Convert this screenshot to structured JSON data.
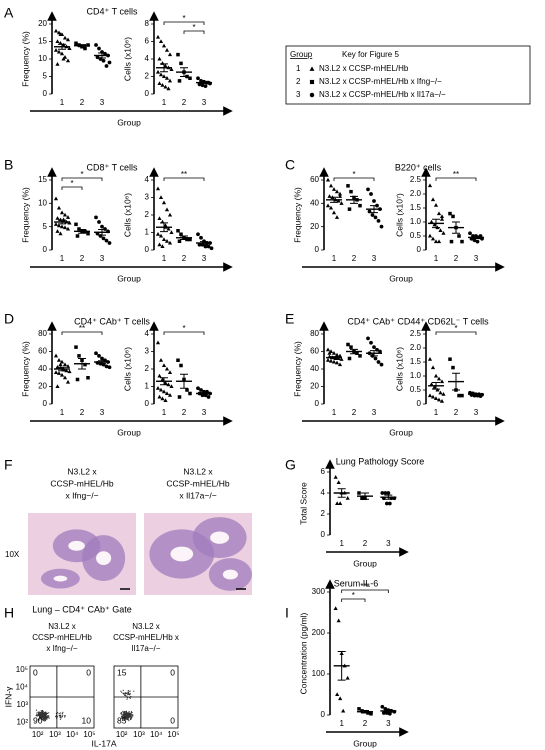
{
  "panels": [
    {
      "letter": "A",
      "title": "CD4⁺ T cells",
      "xlabel": "Group"
    },
    {
      "letter": "B",
      "title": "CD8⁺ T cells",
      "xlabel": "Group"
    },
    {
      "letter": "C",
      "title": "B220⁺ cells",
      "xlabel": "Group"
    },
    {
      "letter": "D",
      "title": "CD4⁺ CAb⁺ T cells",
      "xlabel": "Group"
    },
    {
      "letter": "E",
      "title": "CD4⁺ CAb⁺ CD44⁺ CD62L⁻ T cells",
      "xlabel": "Group"
    },
    {
      "letter": "F"
    },
    {
      "letter": "G",
      "title": "Lung Pathology Score",
      "xlabel": "Group"
    },
    {
      "letter": "H",
      "title": "Lung – CD4⁺ CAb⁺ Gate"
    },
    {
      "letter": "I",
      "title": "Serum IL-6",
      "xlabel": "Group"
    }
  ],
  "key": {
    "header": "Group",
    "title": "Key for Figure 5",
    "rows": [
      {
        "group": "1",
        "marker": "triangle",
        "label": "N3.L2 x CCSP-mHEL/Hb"
      },
      {
        "group": "2",
        "marker": "square",
        "label": "N3.L2 x CCSP-mHEL/Hb x Ifng−/−"
      },
      {
        "group": "3",
        "marker": "circle",
        "label": "N3.L2 x CCSP-mHEL/Hb x Il17a−/−"
      }
    ]
  },
  "chart_data": [
    {
      "type": "dot",
      "ylabel": "Frequency (%)",
      "categories": [
        "1",
        "2",
        "3"
      ],
      "points": [
        [
          18,
          17.5,
          17,
          16,
          15.5,
          15,
          14.5,
          14,
          13.5,
          13,
          12.5,
          12,
          11.5,
          10.5,
          9.5,
          8.5,
          17,
          10
        ],
        [
          14.5,
          14,
          13.5,
          13,
          14
        ],
        [
          14,
          13,
          12,
          11.5,
          11,
          10.5,
          10,
          9.5,
          8,
          9
        ]
      ],
      "means": [
        13.5,
        13.8,
        11
      ],
      "errors": [
        0.7,
        0.3,
        0.7
      ],
      "ylim": [
        0,
        20
      ],
      "yticks": [
        0,
        5,
        10,
        15,
        20
      ],
      "significance": []
    },
    {
      "type": "dot",
      "ylabel": "Cells (x10⁶)",
      "categories": [
        "1",
        "2",
        "3"
      ],
      "points": [
        [
          6.5,
          6,
          5.5,
          5,
          4.5,
          4,
          3.5,
          3.2,
          3,
          2.8,
          2.5,
          2.2,
          2,
          1.8,
          1.5,
          1.2,
          1,
          0.8,
          0.6
        ],
        [
          4.5,
          3.5,
          2.5,
          2,
          1.8,
          1.5
        ],
        [
          1.8,
          1.5,
          1.4,
          1.3,
          1.2,
          1.1,
          1,
          0.9,
          1.3
        ]
      ],
      "means": [
        3,
        2.5,
        1.3
      ],
      "errors": [
        0.45,
        0.5,
        0.1
      ],
      "ylim": [
        0,
        8
      ],
      "yticks": [
        0,
        2,
        4,
        6,
        8
      ],
      "significance": [
        {
          "groups": [
            0,
            2
          ],
          "label": "*"
        },
        {
          "groups": [
            1,
            2
          ],
          "label": "*"
        }
      ]
    },
    {
      "type": "dot",
      "ylabel": "Frequency (%)",
      "categories": [
        "1",
        "2",
        "3"
      ],
      "points": [
        [
          11,
          9,
          8,
          7.5,
          7,
          6.8,
          6.5,
          6.2,
          6,
          5.8,
          5.5,
          5.2,
          5,
          4.8,
          4.5,
          4,
          3.5,
          6.5
        ],
        [
          5.5,
          4.5,
          4,
          4,
          3.5,
          3
        ],
        [
          7,
          6,
          5,
          4.5,
          4,
          3.5,
          3,
          2.5,
          2,
          1.5
        ]
      ],
      "means": [
        6,
        4,
        3.8
      ],
      "errors": [
        0.4,
        0.4,
        0.6
      ],
      "ylim": [
        0,
        15
      ],
      "yticks": [
        0,
        5,
        10,
        15
      ],
      "significance": [
        {
          "groups": [
            0,
            2
          ],
          "label": "*"
        },
        {
          "groups": [
            0,
            1
          ],
          "label": "*"
        }
      ]
    },
    {
      "type": "dot",
      "ylabel": "Cells (x10⁶)",
      "categories": [
        "1",
        "2",
        "3"
      ],
      "points": [
        [
          3.5,
          3,
          2.7,
          2.3,
          2,
          1.8,
          1.6,
          1.4,
          1.2,
          1,
          0.9,
          0.8,
          0.6,
          0.5,
          0.4,
          0.3,
          0.2,
          1.3
        ],
        [
          1.1,
          0.9,
          0.7,
          0.6,
          0.6,
          0.5
        ],
        [
          0.9,
          0.7,
          0.5,
          0.4,
          0.4,
          0.3,
          0.3,
          0.2,
          0.2,
          0.1
        ]
      ],
      "means": [
        1.3,
        0.7,
        0.4
      ],
      "errors": [
        0.25,
        0.1,
        0.08
      ],
      "ylim": [
        0,
        4
      ],
      "yticks": [
        0,
        1,
        2,
        3,
        4
      ],
      "significance": [
        {
          "groups": [
            0,
            2
          ],
          "label": "**"
        }
      ]
    },
    {
      "type": "dot",
      "ylabel": "Frequency (%)",
      "categories": [
        "1",
        "2",
        "3"
      ],
      "points": [
        [
          60,
          55,
          52,
          50,
          48,
          46,
          45,
          43,
          42,
          40,
          38,
          36,
          32,
          28,
          46
        ],
        [
          55,
          50,
          45,
          43,
          38,
          35
        ],
        [
          52,
          48,
          42,
          38,
          35,
          33,
          30,
          28,
          25,
          20
        ]
      ],
      "means": [
        43,
        43,
        35
      ],
      "errors": [
        2.2,
        3,
        3
      ],
      "ylim": [
        0,
        60
      ],
      "yticks": [
        0,
        20,
        40,
        60
      ],
      "significance": [
        {
          "groups": [
            0,
            2
          ],
          "label": "*"
        }
      ]
    },
    {
      "type": "dot",
      "ylabel": "Cells (x10⁷)",
      "categories": [
        "1",
        "2",
        "3"
      ],
      "points": [
        [
          2.3,
          1.8,
          1.6,
          1.3,
          1.1,
          1,
          0.9,
          0.8,
          0.7,
          0.6,
          0.5,
          0.4,
          0.3,
          0.3,
          1.2
        ],
        [
          1.3,
          1.2,
          0.8,
          0.5,
          0.3,
          0.3
        ],
        [
          0.6,
          0.5,
          0.5,
          0.45,
          0.4,
          0.4,
          0.35,
          0.3,
          0.5
        ]
      ],
      "means": [
        0.95,
        0.8,
        0.45
      ],
      "errors": [
        0.15,
        0.2,
        0.04
      ],
      "ylim": [
        0,
        2.5
      ],
      "yticks": [
        0,
        0.5,
        {
          "value": 1,
          "label": "1.0"
        },
        1.5,
        {
          "value": 2,
          "label": "2.0"
        },
        2.5
      ],
      "significance": [
        {
          "groups": [
            0,
            2
          ],
          "label": "**"
        }
      ]
    },
    {
      "type": "dot",
      "ylabel": "Frequency (%)",
      "categories": [
        "1",
        "2",
        "3"
      ],
      "points": [
        [
          55,
          50,
          48,
          45,
          43,
          42,
          41,
          40,
          38,
          37,
          36,
          35,
          33,
          30,
          25,
          20,
          45,
          39
        ],
        [
          65,
          55,
          50,
          45,
          30,
          28
        ],
        [
          58,
          55,
          52,
          50,
          48,
          47,
          46,
          45,
          43,
          42
        ]
      ],
      "means": [
        40,
        46,
        48
      ],
      "errors": [
        2,
        6,
        1.5
      ],
      "ylim": [
        0,
        80
      ],
      "yticks": [
        0,
        20,
        40,
        60,
        80
      ],
      "significance": [
        {
          "groups": [
            0,
            2
          ],
          "label": "**"
        }
      ]
    },
    {
      "type": "dot",
      "ylabel": "Cells (x10⁶)",
      "categories": [
        "1",
        "2",
        "3"
      ],
      "points": [
        [
          3.5,
          2.5,
          2.2,
          2,
          1.8,
          1.6,
          1.4,
          1.2,
          1.1,
          1,
          0.9,
          0.8,
          0.7,
          0.6,
          0.5,
          0.4,
          0.3,
          0.2
        ],
        [
          2.5,
          2.2,
          1.4,
          0.8,
          0.6,
          0.4
        ],
        [
          0.9,
          0.8,
          0.7,
          0.7,
          0.6,
          0.6,
          0.5,
          0.5,
          0.4
        ]
      ],
      "means": [
        1.3,
        1.3,
        0.6
      ],
      "errors": [
        0.2,
        0.4,
        0.05
      ],
      "ylim": [
        0,
        4
      ],
      "yticks": [
        0,
        1,
        2,
        3,
        4
      ],
      "significance": [
        {
          "groups": [
            0,
            2
          ],
          "label": "*"
        }
      ]
    },
    {
      "type": "dot",
      "ylabel": "Frequency (%)",
      "categories": [
        "1",
        "2",
        "3"
      ],
      "points": [
        [
          62,
          60,
          58,
          56,
          55,
          54,
          53,
          52,
          52,
          51,
          50,
          49,
          48,
          47,
          45,
          58
        ],
        [
          68,
          65,
          60,
          58,
          55,
          52
        ],
        [
          75,
          70,
          65,
          62,
          60,
          58,
          55,
          52,
          48,
          45
        ]
      ],
      "means": [
        53,
        60,
        58
      ],
      "errors": [
        1.2,
        2.5,
        3
      ],
      "ylim": [
        0,
        80
      ],
      "yticks": [
        0,
        20,
        40,
        60,
        80
      ],
      "significance": []
    },
    {
      "type": "dot",
      "ylabel": "Cells (x10⁶)",
      "categories": [
        "1",
        "2",
        "3"
      ],
      "points": [
        [
          1.6,
          1.3,
          1,
          0.9,
          0.8,
          0.7,
          0.6,
          0.5,
          0.4,
          0.35,
          0.3,
          0.25,
          0.2,
          0.15,
          0.1,
          0.7
        ],
        [
          1.6,
          1.3,
          0.5,
          0.3,
          0.3
        ],
        [
          0.4,
          0.38,
          0.35,
          0.35,
          0.33,
          0.32,
          0.3,
          0.3,
          0.28
        ]
      ],
      "means": [
        0.65,
        0.8,
        0.35
      ],
      "errors": [
        0.12,
        0.3,
        0.02
      ],
      "ylim": [
        0,
        2.5
      ],
      "yticks": [
        0,
        0.5,
        {
          "value": 1,
          "label": "1.0"
        },
        1.5,
        {
          "value": 2,
          "label": "2.0"
        },
        2.5
      ],
      "significance": [
        {
          "groups": [
            0,
            2
          ],
          "label": "*"
        }
      ]
    },
    {
      "type": "dot",
      "ylabel": "Total Score",
      "categories": [
        "1",
        "2",
        "3"
      ],
      "points": [
        [
          5.5,
          5,
          4,
          4,
          3.5,
          3,
          3
        ],
        [
          4,
          3.5,
          3.5
        ],
        [
          4,
          4,
          4,
          3.5,
          3.5,
          3.5,
          3,
          3
        ]
      ],
      "means": [
        4,
        3.7,
        3.6
      ],
      "errors": [
        0.4,
        0.3,
        0.2
      ],
      "ylim": [
        0,
        6
      ],
      "yticks": [
        0,
        2,
        4,
        6
      ],
      "significance": []
    },
    {
      "type": "dot",
      "ylabel": "Concentration (pg/ml)",
      "categories": [
        "1",
        "2",
        "3"
      ],
      "points": [
        [
          260,
          230,
          150,
          120,
          90,
          50,
          40,
          10
        ],
        [
          15,
          10,
          8,
          5,
          3
        ],
        [
          20,
          15,
          12,
          10,
          8,
          5,
          5,
          3
        ]
      ],
      "means": [
        120,
        8,
        10
      ],
      "errors": [
        35,
        3,
        3
      ],
      "ylim": [
        0,
        300
      ],
      "yticks": [
        0,
        100,
        200,
        300
      ],
      "significance": [
        {
          "groups": [
            0,
            2
          ],
          "label": "***"
        },
        {
          "groups": [
            0,
            1
          ],
          "label": "*"
        }
      ]
    }
  ],
  "histology": {
    "magnification": "10X",
    "images": [
      {
        "caption": [
          "N3.L2 x",
          "CCSP-mHEL/Hb",
          "x Ifng−/−"
        ]
      },
      {
        "caption": [
          "N3.L2 x",
          "CCSP-mHEL/Hb",
          "x Il17a−/−"
        ]
      }
    ]
  },
  "flow": {
    "ylabel": "IFN-γ",
    "xlabel": "IL-17A",
    "yticks": [
      "10⁵",
      "10⁴",
      "10³",
      "10²"
    ],
    "xticks": [
      "10²",
      "10³",
      "10⁴",
      "10⁵"
    ],
    "plots": [
      {
        "caption": [
          "N3.L2 x",
          "CCSP-mHEL/Hb",
          "x Ifng−/−"
        ],
        "quadrants": [
          0,
          0,
          90,
          10
        ]
      },
      {
        "caption": [
          "N3.L2 x",
          "CCSP-mHEL/Hb x",
          "Il17a−/−"
        ],
        "quadrants": [
          15,
          0,
          85,
          0
        ]
      }
    ]
  }
}
